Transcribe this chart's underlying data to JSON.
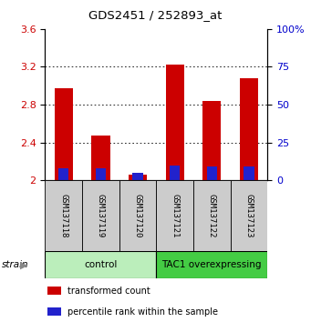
{
  "title": "GDS2451 / 252893_at",
  "samples": [
    "GSM137118",
    "GSM137119",
    "GSM137120",
    "GSM137121",
    "GSM137122",
    "GSM137123"
  ],
  "red_values": [
    2.97,
    2.47,
    2.06,
    3.22,
    2.84,
    3.08
  ],
  "blue_pct": [
    8,
    8,
    5,
    10,
    9,
    9
  ],
  "ylim_left": [
    2.0,
    3.6
  ],
  "ylim_right": [
    0,
    100
  ],
  "yticks_left": [
    2.0,
    2.4,
    2.8,
    3.2,
    3.6
  ],
  "yticks_right": [
    0,
    25,
    50,
    75,
    100
  ],
  "ytick_labels_left": [
    "2",
    "2.4",
    "2.8",
    "3.2",
    "3.6"
  ],
  "ytick_labels_right": [
    "0",
    "25",
    "50",
    "75",
    "100%"
  ],
  "groups": [
    {
      "label": "control",
      "start": 0,
      "end": 3,
      "color": "#bbeebb"
    },
    {
      "label": "TAC1 overexpressing",
      "start": 3,
      "end": 6,
      "color": "#44cc44"
    }
  ],
  "bar_width": 0.5,
  "red_color": "#cc0000",
  "blue_color": "#2222cc",
  "bg_plot": "#ffffff",
  "sample_bg": "#cccccc",
  "legend_red": "transformed count",
  "legend_blue": "percentile rank within the sample",
  "ylabel_left_color": "#cc0000",
  "ylabel_right_color": "#0000cc",
  "grid_dotted_color": "#555555"
}
